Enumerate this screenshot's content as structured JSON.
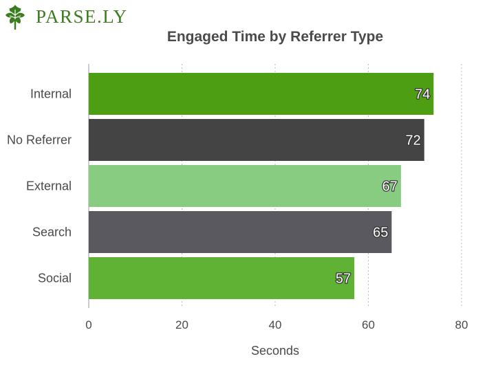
{
  "brand": {
    "name": "Parse.ly",
    "logo_text": "PARSE.LY",
    "color": "#3a7d1e"
  },
  "chart_data": {
    "type": "bar",
    "orientation": "horizontal",
    "title": "Engaged Time by Referrer Type",
    "xlabel": "Seconds",
    "ylabel": "",
    "xlim": [
      0,
      80
    ],
    "x_ticks": [
      0,
      20,
      40,
      60,
      80
    ],
    "grid": "vertical dotted",
    "categories": [
      "Internal",
      "No Referrer",
      "External",
      "Search",
      "Social"
    ],
    "values": [
      74,
      72,
      67,
      65,
      57
    ],
    "colors": [
      "#4d9e12",
      "#444444",
      "#88cc82",
      "#5a5960",
      "#60b234"
    ],
    "data_labels": [
      "74",
      "72",
      "67",
      "65",
      "57"
    ]
  }
}
